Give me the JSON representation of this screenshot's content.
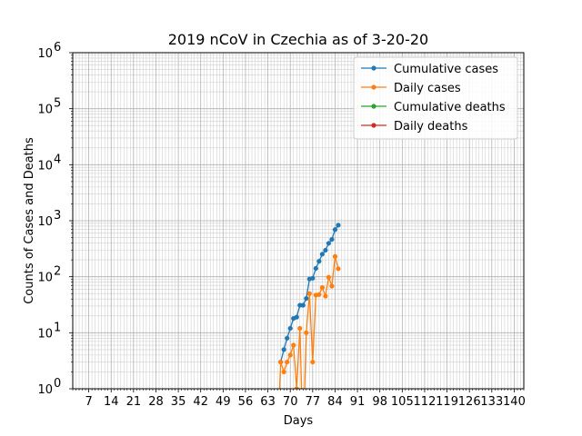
{
  "chart_data": {
    "type": "line",
    "title": "2019 nCoV in Czechia as of 3-20-20",
    "xlabel": "Days",
    "ylabel": "Counts of Cases and Deaths",
    "xlim": [
      2,
      143
    ],
    "ylim": [
      1,
      1000000
    ],
    "yscale": "log",
    "grid": true,
    "legend_position": "top-right",
    "x_ticks": [
      7,
      14,
      21,
      28,
      35,
      42,
      49,
      56,
      63,
      70,
      77,
      84,
      91,
      98,
      105,
      112,
      119,
      126,
      133,
      140
    ],
    "x_tick_labels": [
      "7",
      "14",
      "21",
      "28",
      "35",
      "42",
      "49",
      "56",
      "63",
      "70",
      "77",
      "84",
      "91",
      "98",
      "105",
      "112",
      "119",
      "126",
      "133",
      "140"
    ],
    "y_ticks": [
      1,
      10,
      100,
      1000,
      10000,
      100000,
      1000000
    ],
    "y_tick_labels": [
      {
        "base": "10",
        "exp": "0"
      },
      {
        "base": "10",
        "exp": "1"
      },
      {
        "base": "10",
        "exp": "2"
      },
      {
        "base": "10",
        "exp": "3"
      },
      {
        "base": "10",
        "exp": "4"
      },
      {
        "base": "10",
        "exp": "5"
      },
      {
        "base": "10",
        "exp": "6"
      }
    ],
    "series": [
      {
        "name": "Cumulative cases",
        "color": "#1f77b4",
        "x": [
          67,
          68,
          69,
          70,
          71,
          72,
          73,
          74,
          75,
          76,
          77,
          78,
          79,
          80,
          81,
          82,
          83,
          84,
          85
        ],
        "y": [
          3,
          5,
          8,
          12,
          18,
          19,
          31,
          31,
          41,
          91,
          94,
          141,
          189,
          253,
          298,
          396,
          464,
          694,
          833
        ]
      },
      {
        "name": "Daily cases",
        "color": "#ff7f0e",
        "x": [
          66,
          67,
          68,
          69,
          70,
          71,
          72,
          73,
          74,
          75,
          76,
          77,
          78,
          79,
          80,
          81,
          82,
          83,
          84,
          85
        ],
        "y": [
          0,
          3,
          2,
          3,
          4,
          6,
          1,
          12,
          0,
          10,
          50,
          3,
          47,
          48,
          64,
          45,
          98,
          68,
          230,
          139
        ]
      },
      {
        "name": "Cumulative deaths",
        "color": "#2ca02c",
        "x": [],
        "y": []
      },
      {
        "name": "Daily deaths",
        "color": "#d62728",
        "x": [],
        "y": []
      }
    ]
  }
}
